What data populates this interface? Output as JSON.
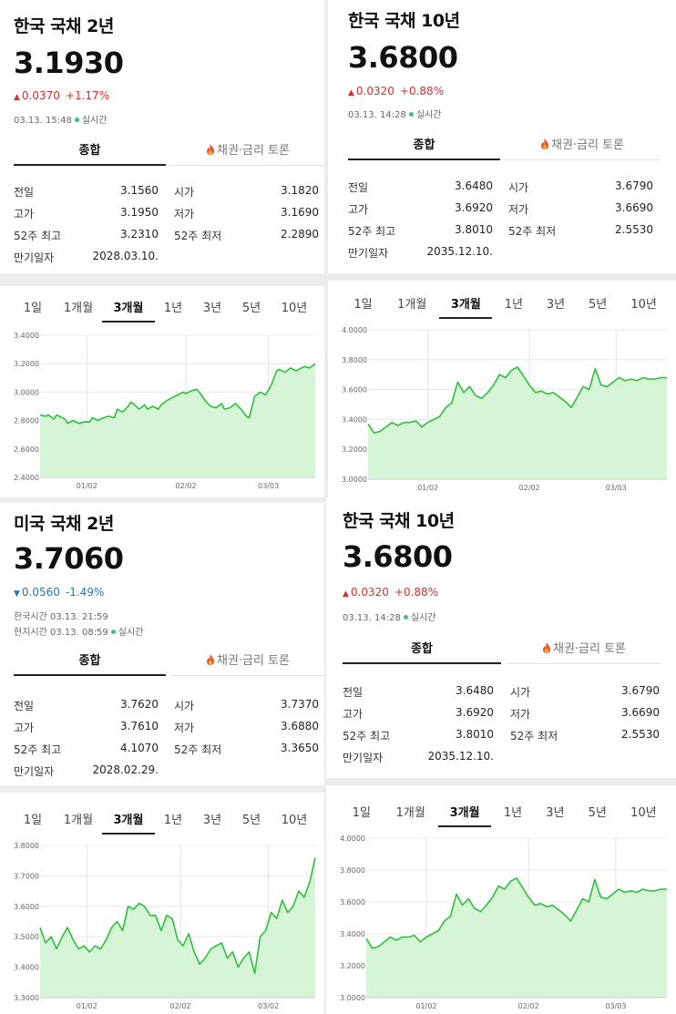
{
  "colors": {
    "up": "#dd2c2c",
    "down": "#1f78c1",
    "line": "#2fbf3c",
    "fill": "#d6f5d6",
    "live_dot": "#3cc08a"
  },
  "icons": {
    "fire": "fire-icon",
    "up_arrow": "triangle-up-icon",
    "down_arrow": "triangle-down-icon"
  },
  "panels": [
    {
      "title": "한국 국채 2년",
      "price": "3.1930",
      "direction": "up",
      "arrow": "▲",
      "change": "0.0370",
      "pct": "+1.17%",
      "time_lines": [
        {
          "text": "03.13. 15:48",
          "live": "실시간"
        }
      ],
      "tab_main": "종합",
      "tab_forum": "채권·금리 토론",
      "stats": [
        {
          "l1": "전일",
          "v1": "3.1560",
          "c1": "",
          "l2": "시가",
          "v2": "3.1820",
          "c2": "up"
        },
        {
          "l1": "고가",
          "v1": "3.1950",
          "c1": "up",
          "l2": "저가",
          "v2": "3.1690",
          "c2": "up"
        },
        {
          "l1": "52주 최고",
          "v1": "3.2310",
          "c1": "",
          "l2": "52주 최저",
          "v2": "2.2890",
          "c2": ""
        },
        {
          "l1": "만기일자",
          "v1": "2028.03.10.",
          "c1": ""
        }
      ]
    },
    {
      "title": "한국 국채 10년",
      "price": "3.6800",
      "direction": "up",
      "arrow": "▲",
      "change": "0.0320",
      "pct": "+0.88%",
      "time_lines": [
        {
          "text": "03.13. 14:28",
          "live": "실시간"
        }
      ],
      "tab_main": "종합",
      "tab_forum": "채권·금리 토론",
      "stats": [
        {
          "l1": "전일",
          "v1": "3.6480",
          "c1": "",
          "l2": "시가",
          "v2": "3.6790",
          "c2": "up"
        },
        {
          "l1": "고가",
          "v1": "3.6920",
          "c1": "up",
          "l2": "저가",
          "v2": "3.6690",
          "c2": "up"
        },
        {
          "l1": "52주 최고",
          "v1": "3.8010",
          "c1": "",
          "l2": "52주 최저",
          "v2": "2.5530",
          "c2": ""
        },
        {
          "l1": "만기일자",
          "v1": "2035.12.10.",
          "c1": ""
        }
      ]
    },
    {
      "title": "미국 국채 2년",
      "price": "3.7060",
      "direction": "down",
      "arrow": "▼",
      "change": "0.0560",
      "pct": "-1.49%",
      "time_lines": [
        {
          "text": "한국시간 03.13. 21:59",
          "live": ""
        },
        {
          "text": "현지시간 03.13. 08:59",
          "live": "실시간"
        }
      ],
      "tab_main": "종합",
      "tab_forum": "채권·금리 토론",
      "stats": [
        {
          "l1": "전일",
          "v1": "3.7620",
          "c1": "",
          "l2": "시가",
          "v2": "3.7370",
          "c2": "down"
        },
        {
          "l1": "고가",
          "v1": "3.7610",
          "c1": "down",
          "l2": "저가",
          "v2": "3.6880",
          "c2": "down"
        },
        {
          "l1": "52주 최고",
          "v1": "4.1070",
          "c1": "",
          "l2": "52주 최저",
          "v2": "3.3650",
          "c2": ""
        },
        {
          "l1": "만기일자",
          "v1": "2028.02.29.",
          "c1": ""
        }
      ]
    },
    {
      "title": "한국 국채 10년",
      "price": "3.6800",
      "direction": "up",
      "arrow": "▲",
      "change": "0.0320",
      "pct": "+0.88%",
      "time_lines": [
        {
          "text": "03.13. 14:28",
          "live": "실시간"
        }
      ],
      "tab_main": "종합",
      "tab_forum": "채권·금리 토론",
      "stats": [
        {
          "l1": "전일",
          "v1": "3.6480",
          "c1": "",
          "l2": "시가",
          "v2": "3.6790",
          "c2": "up"
        },
        {
          "l1": "고가",
          "v1": "3.6920",
          "c1": "up",
          "l2": "저가",
          "v2": "3.6690",
          "c2": "up"
        },
        {
          "l1": "52주 최고",
          "v1": "3.8010",
          "c1": "",
          "l2": "52주 최저",
          "v2": "2.5530",
          "c2": ""
        },
        {
          "l1": "만기일자",
          "v1": "2035.12.10.",
          "c1": ""
        }
      ]
    }
  ],
  "range_tabs": [
    "1일",
    "1개월",
    "3개월",
    "1년",
    "3년",
    "5년",
    "10년"
  ],
  "active_range": "3개월",
  "chart_data": [
    {
      "type": "area",
      "xlabel": "",
      "ylabel": "",
      "yticks": [
        "2.4000",
        "2.6000",
        "2.8000",
        "3.0000",
        "3.2000",
        "3.4000"
      ],
      "ylim": [
        2.4,
        3.4
      ],
      "xlim": [
        0,
        100
      ],
      "xticks": [
        {
          "x": 17,
          "label": "01/02"
        },
        {
          "x": 53,
          "label": "02/02"
        },
        {
          "x": 83,
          "label": "03/03"
        }
      ],
      "x": [
        0,
        2,
        3,
        5,
        6,
        7,
        9,
        10,
        12,
        14,
        16,
        18,
        19,
        21,
        23,
        25,
        27,
        28,
        30,
        32,
        33,
        35,
        36,
        38,
        39,
        41,
        43,
        44,
        46,
        48,
        50,
        52,
        53,
        55,
        57,
        59,
        60,
        62,
        64,
        66,
        67,
        69,
        71,
        73,
        75,
        76,
        78,
        80,
        82,
        84,
        86,
        87,
        89,
        91,
        93,
        94,
        96,
        98,
        100
      ],
      "values": [
        2.84,
        2.83,
        2.84,
        2.81,
        2.84,
        2.83,
        2.81,
        2.78,
        2.8,
        2.78,
        2.79,
        2.79,
        2.82,
        2.8,
        2.82,
        2.83,
        2.82,
        2.88,
        2.86,
        2.9,
        2.93,
        2.9,
        2.88,
        2.91,
        2.88,
        2.9,
        2.88,
        2.91,
        2.94,
        2.96,
        2.98,
        3.0,
        2.99,
        3.01,
        3.02,
        2.97,
        2.94,
        2.9,
        2.89,
        2.92,
        2.88,
        2.89,
        2.92,
        2.88,
        2.83,
        2.82,
        2.97,
        3.0,
        2.98,
        3.05,
        3.15,
        3.16,
        3.14,
        3.17,
        3.15,
        3.16,
        3.18,
        3.17,
        3.2
      ]
    },
    {
      "type": "area",
      "xlabel": "",
      "ylabel": "",
      "yticks": [
        "3.0000",
        "3.2000",
        "3.4000",
        "3.6000",
        "3.8000",
        "4.0000"
      ],
      "ylim": [
        3.0,
        4.0
      ],
      "xlim": [
        0,
        100
      ],
      "xticks": [
        {
          "x": 20,
          "label": "01/02"
        },
        {
          "x": 54,
          "label": "02/02"
        },
        {
          "x": 83,
          "label": "03/03"
        }
      ],
      "x": [
        0,
        2,
        4,
        6,
        8,
        10,
        12,
        14,
        16,
        18,
        20,
        22,
        24,
        26,
        28,
        30,
        32,
        34,
        36,
        38,
        40,
        42,
        44,
        46,
        48,
        50,
        52,
        54,
        56,
        58,
        60,
        62,
        64,
        66,
        68,
        70,
        72,
        74,
        76,
        78,
        80,
        82,
        84,
        86,
        88,
        90,
        92,
        94,
        96,
        98,
        100
      ],
      "values": [
        3.37,
        3.31,
        3.32,
        3.35,
        3.38,
        3.36,
        3.38,
        3.38,
        3.39,
        3.35,
        3.38,
        3.4,
        3.42,
        3.48,
        3.51,
        3.65,
        3.58,
        3.62,
        3.56,
        3.54,
        3.58,
        3.63,
        3.7,
        3.68,
        3.73,
        3.75,
        3.69,
        3.63,
        3.58,
        3.59,
        3.57,
        3.58,
        3.55,
        3.52,
        3.48,
        3.55,
        3.62,
        3.6,
        3.74,
        3.63,
        3.62,
        3.65,
        3.68,
        3.66,
        3.67,
        3.66,
        3.68,
        3.67,
        3.67,
        3.68,
        3.68
      ]
    },
    {
      "type": "area",
      "xlabel": "",
      "ylabel": "",
      "yticks": [
        "3.3000",
        "3.4000",
        "3.5000",
        "3.6000",
        "3.7000",
        "3.8000"
      ],
      "ylim": [
        3.3,
        3.8
      ],
      "xlim": [
        0,
        100
      ],
      "xticks": [
        {
          "x": 17,
          "label": "01/02"
        },
        {
          "x": 51,
          "label": "02/02"
        },
        {
          "x": 83,
          "label": "03/02"
        }
      ],
      "x": [
        0,
        2,
        4,
        6,
        8,
        10,
        12,
        14,
        16,
        18,
        20,
        22,
        24,
        26,
        28,
        30,
        32,
        34,
        36,
        38,
        40,
        42,
        44,
        46,
        48,
        50,
        52,
        54,
        56,
        58,
        60,
        62,
        64,
        66,
        68,
        70,
        72,
        74,
        76,
        78,
        80,
        82,
        84,
        86,
        88,
        90,
        92,
        94,
        96,
        98,
        100
      ],
      "values": [
        3.53,
        3.48,
        3.5,
        3.46,
        3.5,
        3.53,
        3.49,
        3.46,
        3.47,
        3.45,
        3.47,
        3.46,
        3.49,
        3.53,
        3.55,
        3.52,
        3.6,
        3.59,
        3.61,
        3.6,
        3.57,
        3.57,
        3.52,
        3.57,
        3.56,
        3.49,
        3.47,
        3.51,
        3.45,
        3.41,
        3.43,
        3.46,
        3.47,
        3.48,
        3.43,
        3.45,
        3.4,
        3.43,
        3.45,
        3.38,
        3.5,
        3.52,
        3.58,
        3.56,
        3.62,
        3.58,
        3.6,
        3.65,
        3.63,
        3.68,
        3.76
      ]
    },
    {
      "type": "area",
      "xlabel": "",
      "ylabel": "",
      "yticks": [
        "3.0000",
        "3.2000",
        "3.4000",
        "3.6000",
        "3.8000",
        "4.0000"
      ],
      "ylim": [
        3.0,
        4.0
      ],
      "xlim": [
        0,
        100
      ],
      "xticks": [
        {
          "x": 20,
          "label": "01/02"
        },
        {
          "x": 54,
          "label": "02/02"
        },
        {
          "x": 83,
          "label": "03/03"
        }
      ],
      "x": [
        0,
        2,
        4,
        6,
        8,
        10,
        12,
        14,
        16,
        18,
        20,
        22,
        24,
        26,
        28,
        30,
        32,
        34,
        36,
        38,
        40,
        42,
        44,
        46,
        48,
        50,
        52,
        54,
        56,
        58,
        60,
        62,
        64,
        66,
        68,
        70,
        72,
        74,
        76,
        78,
        80,
        82,
        84,
        86,
        88,
        90,
        92,
        94,
        96,
        98,
        100
      ],
      "values": [
        3.37,
        3.31,
        3.32,
        3.35,
        3.38,
        3.36,
        3.38,
        3.38,
        3.39,
        3.35,
        3.38,
        3.4,
        3.42,
        3.48,
        3.51,
        3.65,
        3.58,
        3.62,
        3.56,
        3.54,
        3.58,
        3.63,
        3.7,
        3.68,
        3.73,
        3.75,
        3.69,
        3.63,
        3.58,
        3.59,
        3.57,
        3.58,
        3.55,
        3.52,
        3.48,
        3.55,
        3.62,
        3.6,
        3.74,
        3.63,
        3.62,
        3.65,
        3.68,
        3.66,
        3.67,
        3.66,
        3.68,
        3.67,
        3.67,
        3.68,
        3.68
      ]
    }
  ]
}
